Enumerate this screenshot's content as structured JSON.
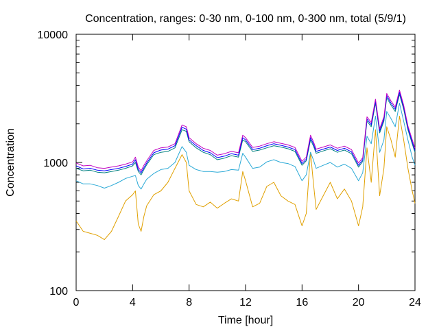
{
  "chart_data": {
    "type": "line",
    "title": "Concentration, ranges: 0-30 nm, 0-100 nm, 0-300 nm, total (5/9/1)",
    "xlabel": "Time [hour]",
    "ylabel": "Concentration",
    "xlim": [
      0,
      24
    ],
    "ylim": [
      100,
      10000
    ],
    "y_scale": "log",
    "x_ticks": [
      0,
      4,
      8,
      12,
      16,
      20,
      24
    ],
    "y_ticks": [
      100,
      1000,
      10000
    ],
    "x_tick_labels": [
      "0",
      "4",
      "8",
      "12",
      "16",
      "20",
      "24"
    ],
    "y_tick_labels": [
      "100",
      "1000",
      "10000"
    ],
    "grid": false,
    "legend": "none",
    "x": [
      0,
      0.5,
      1,
      1.5,
      2,
      2.5,
      3,
      3.5,
      4,
      4.2,
      4.4,
      4.6,
      4.8,
      5,
      5.5,
      6,
      6.5,
      7,
      7.5,
      7.8,
      8,
      8.5,
      9,
      9.5,
      10,
      10.5,
      11,
      11.5,
      11.8,
      12,
      12.5,
      13,
      13.5,
      14,
      14.5,
      15,
      15.5,
      16,
      16.3,
      16.6,
      16.8,
      17,
      17.5,
      18,
      18.5,
      19,
      19.5,
      20,
      20.3,
      20.6,
      20.9,
      21.2,
      21.5,
      21.8,
      22,
      22.3,
      22.6,
      22.9,
      23.2,
      23.5,
      23.8,
      24
    ],
    "series": [
      {
        "color": "#e0a000",
        "values": [
          350,
          290,
          280,
          270,
          250,
          290,
          380,
          500,
          560,
          600,
          330,
          290,
          380,
          460,
          560,
          600,
          700,
          900,
          1150,
          1000,
          600,
          470,
          450,
          490,
          440,
          480,
          520,
          500,
          850,
          720,
          450,
          480,
          650,
          700,
          550,
          500,
          470,
          320,
          400,
          1200,
          700,
          430,
          550,
          700,
          520,
          620,
          500,
          320,
          450,
          1300,
          700,
          1800,
          550,
          900,
          1900,
          1500,
          1100,
          2300,
          1500,
          900,
          600,
          480
        ]
      },
      {
        "color": "#2aa9d6",
        "values": [
          720,
          680,
          680,
          660,
          630,
          660,
          700,
          750,
          780,
          790,
          660,
          620,
          680,
          740,
          820,
          880,
          900,
          1000,
          1330,
          1200,
          950,
          880,
          850,
          850,
          840,
          850,
          880,
          870,
          1180,
          1100,
          900,
          920,
          1010,
          1050,
          1000,
          980,
          930,
          720,
          800,
          1200,
          1050,
          900,
          950,
          1000,
          920,
          970,
          900,
          720,
          830,
          1600,
          1400,
          2300,
          1200,
          1500,
          2500,
          2200,
          1900,
          2900,
          2100,
          1500,
          1100,
          950
        ]
      },
      {
        "color": "#008080",
        "values": [
          900,
          860,
          870,
          840,
          830,
          850,
          870,
          900,
          940,
          1000,
          850,
          800,
          880,
          960,
          1150,
          1200,
          1220,
          1300,
          1800,
          1750,
          1450,
          1300,
          1200,
          1150,
          1050,
          1080,
          1130,
          1100,
          1500,
          1450,
          1220,
          1250,
          1300,
          1350,
          1320,
          1280,
          1220,
          950,
          1030,
          1500,
          1350,
          1180,
          1230,
          1280,
          1200,
          1250,
          1170,
          920,
          1020,
          2100,
          1900,
          2900,
          1700,
          2100,
          3200,
          2800,
          2500,
          3400,
          2600,
          1800,
          1400,
          1200
        ]
      },
      {
        "color": "#0000ff",
        "values": [
          940,
          890,
          900,
          870,
          860,
          880,
          900,
          930,
          970,
          1050,
          880,
          830,
          910,
          990,
          1190,
          1250,
          1270,
          1350,
          1880,
          1820,
          1500,
          1350,
          1240,
          1190,
          1090,
          1120,
          1170,
          1140,
          1560,
          1500,
          1260,
          1290,
          1350,
          1400,
          1360,
          1320,
          1260,
          980,
          1060,
          1560,
          1400,
          1220,
          1270,
          1320,
          1240,
          1290,
          1210,
          950,
          1050,
          2180,
          1970,
          3000,
          1760,
          2180,
          3320,
          2900,
          2600,
          3530,
          2700,
          1860,
          1450,
          1240
        ]
      },
      {
        "color": "#c000c0",
        "values": [
          990,
          940,
          950,
          910,
          900,
          920,
          940,
          970,
          1010,
          1100,
          920,
          860,
          950,
          1030,
          1240,
          1300,
          1320,
          1400,
          1960,
          1900,
          1560,
          1400,
          1290,
          1240,
          1140,
          1170,
          1220,
          1190,
          1630,
          1560,
          1310,
          1340,
          1400,
          1450,
          1410,
          1370,
          1310,
          1020,
          1100,
          1630,
          1460,
          1270,
          1320,
          1370,
          1290,
          1340,
          1260,
          990,
          1090,
          2270,
          2050,
          3120,
          1830,
          2270,
          3450,
          3020,
          2700,
          3670,
          2800,
          1930,
          1510,
          1290
        ]
      }
    ]
  }
}
